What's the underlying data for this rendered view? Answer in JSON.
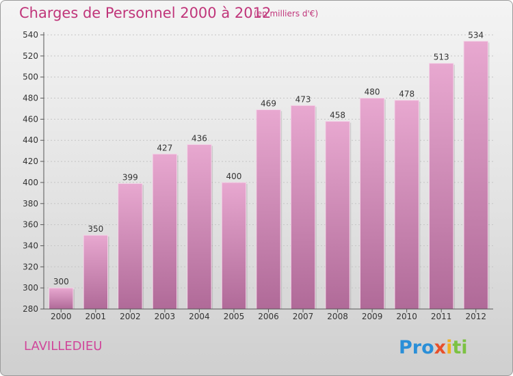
{
  "header": {
    "title": "Charges de Personnel 2000 à 2012",
    "unit": "(en milliers d'€)"
  },
  "footer": {
    "commune": "LAVILLEDIEU",
    "brand": {
      "p": "Pro",
      "x": "x",
      "i": "i",
      "ti": "ti"
    }
  },
  "chart_data": {
    "type": "bar",
    "title": "Charges de Personnel 2000 à 2012",
    "subtitle": "(en milliers d'€)",
    "xlabel": "",
    "ylabel": "",
    "categories": [
      "2000",
      "2001",
      "2002",
      "2003",
      "2004",
      "2005",
      "2006",
      "2007",
      "2008",
      "2009",
      "2010",
      "2011",
      "2012"
    ],
    "series": [
      {
        "values": [
          300,
          350,
          399,
          427,
          436,
          400,
          469,
          473,
          458,
          480,
          478,
          513,
          534
        ]
      }
    ],
    "ylim": [
      280,
      540
    ],
    "yticks": [
      280,
      300,
      320,
      340,
      360,
      380,
      400,
      420,
      440,
      460,
      480,
      500,
      520,
      540
    ],
    "grid": true,
    "colors": {
      "bar_top": "#e8a8d0",
      "bar_bottom": "#b06a98",
      "title": "#c0357a"
    }
  }
}
